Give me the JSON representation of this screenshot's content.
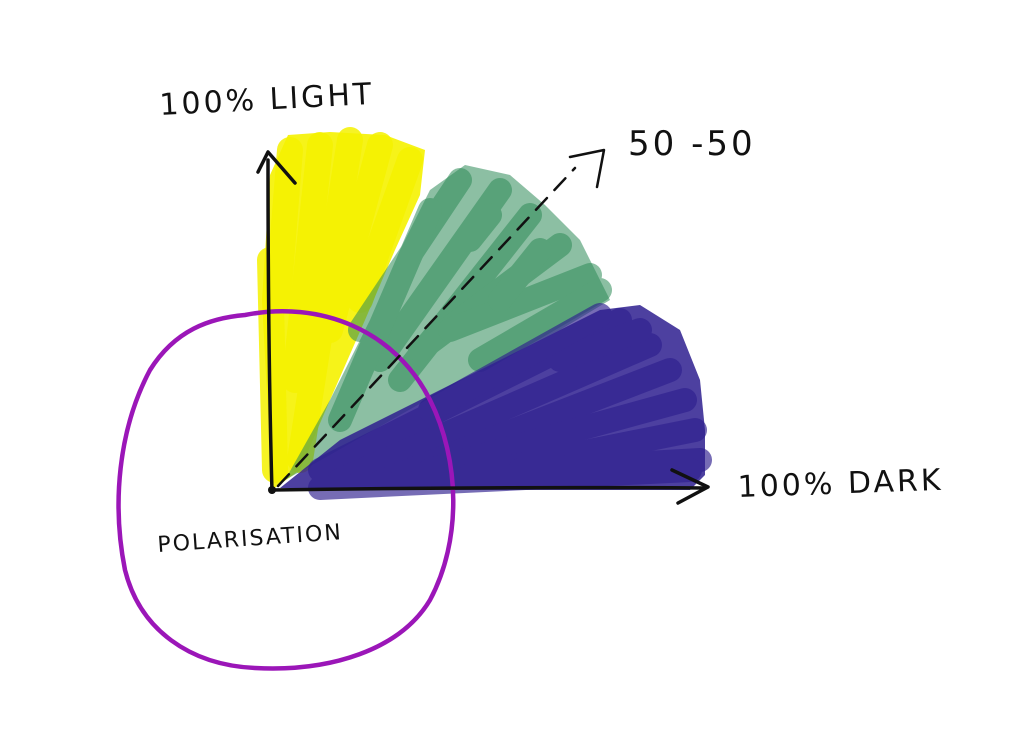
{
  "diagram": {
    "labels": {
      "vertical_axis": "100% LIGHT",
      "horizontal_axis": "100% DARK",
      "diagonal": "50 -50",
      "circle": "POLARISATION"
    },
    "colors": {
      "light_region": "#f5f200",
      "mixed_region": "#2e8b57",
      "dark_region": "#2e1f8f",
      "circle": "#9b16b8",
      "ink": "#111111"
    }
  }
}
